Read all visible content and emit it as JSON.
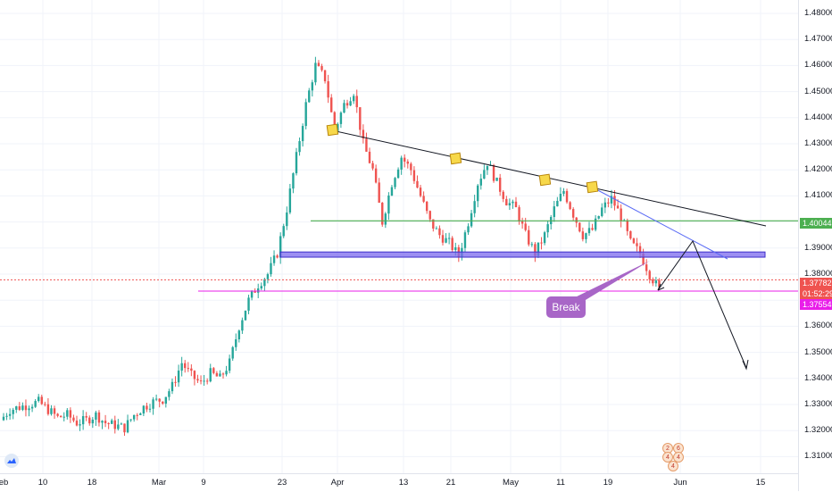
{
  "price_scale": {
    "ticks": [
      "1.48000",
      "1.47000",
      "1.46000",
      "1.45000",
      "1.44000",
      "1.43000",
      "1.42000",
      "1.41000",
      "1.40000",
      "1.39000",
      "1.38000",
      "1.37000",
      "1.36000",
      "1.35000",
      "1.34000",
      "1.33000",
      "1.32000",
      "1.31000"
    ],
    "tags": [
      {
        "label": "1.40044",
        "color": "#4caf50",
        "text_color": "#ffffff",
        "price": 1.40044
      },
      {
        "label": "1.37782",
        "color": "#ef5350",
        "text_color": "#ffffff",
        "price": 1.37782
      },
      {
        "label": "01:52:29",
        "color": "#ef5350",
        "text_color": "#ffffff",
        "price": 1.37352
      },
      {
        "label": "1.37554",
        "color": "#e91ee9",
        "text_color": "#ffffff",
        "price": 1.3705
      }
    ]
  },
  "time_axis": {
    "labels": [
      "eb",
      "10",
      "18",
      "Mar",
      "9",
      "23",
      "Apr",
      "13",
      "21",
      "May",
      "11",
      "19",
      "Jun",
      "15"
    ]
  },
  "annotations": {
    "break_label": "Break"
  },
  "events": {
    "labels": [
      "2",
      "6",
      "4",
      "4",
      "4"
    ]
  },
  "colors": {
    "up_candle": "#26a69a",
    "down_candle": "#ef5350",
    "support_line": "#4caf50",
    "zone": "#7b68ee",
    "trendline": "#131722",
    "wedge_line": "#5b6cf5",
    "pivot_marker": "#f7d84a"
  },
  "chart_data": {
    "type": "candlestick",
    "symbol_context": "price chart",
    "y_range": [
      1.305,
      1.485
    ],
    "x_labels": [
      "eb",
      "10",
      "18",
      "Mar",
      "9",
      "23",
      "Apr",
      "13",
      "21",
      "May",
      "11",
      "19",
      "Jun",
      "15"
    ],
    "support_level": 1.40044,
    "last_price": 1.37782,
    "countdown": "01:52:29",
    "marked_level": 1.37554,
    "zone": [
      1.3865,
      1.3885
    ],
    "price_path": [
      1.324,
      1.328,
      1.329,
      1.33,
      1.331,
      1.328,
      1.325,
      1.326,
      1.323,
      1.324,
      1.326,
      1.323,
      1.322,
      1.321,
      1.326,
      1.329,
      1.331,
      1.332,
      1.337,
      1.346,
      1.341,
      1.338,
      1.342,
      1.34,
      1.346,
      1.36,
      1.37,
      1.376,
      1.38,
      1.388,
      1.405,
      1.425,
      1.445,
      1.46,
      1.455,
      1.435,
      1.445,
      1.45,
      1.43,
      1.42,
      1.4,
      1.415,
      1.425,
      1.42,
      1.41,
      1.4,
      1.395,
      1.392,
      1.387,
      1.4,
      1.415,
      1.423,
      1.415,
      1.408,
      1.405,
      1.395,
      1.388,
      1.395,
      1.405,
      1.412,
      1.403,
      1.395,
      1.397,
      1.405,
      1.409,
      1.402,
      1.392,
      1.388,
      1.38,
      1.374
    ]
  }
}
